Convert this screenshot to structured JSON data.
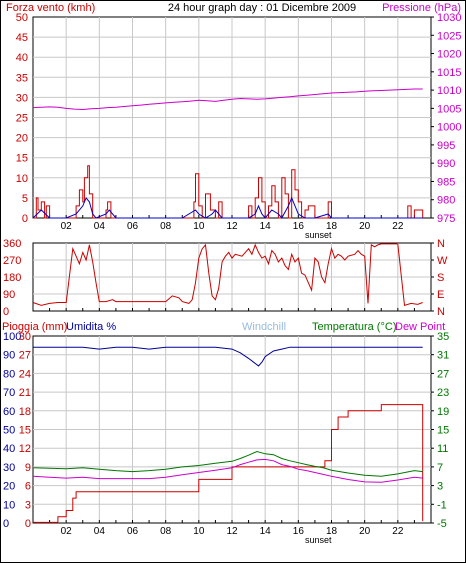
{
  "header": {
    "left_label": "Forza vento (kmh)",
    "title": "24 hour graph day : 01 Dicembre 2009",
    "right_label": "Pressione (hPa)"
  },
  "colors": {
    "wind": "#cc0000",
    "gust": "#0000cc",
    "pressure": "#cc00cc",
    "direction": "#cc0000",
    "rain": "#cc0000",
    "humidity": "#000099",
    "windchill": "#99bbdd",
    "temperature": "#007700",
    "dewpoint": "#cc00cc",
    "grid": "#c8c8c8",
    "axis": "#000000"
  },
  "bottom_header": {
    "rain_label": "Pioggia (mm)",
    "humidity_label": "Umidita %",
    "windchill_label": "Windchill",
    "temperature_label": "Temperatura (°C)",
    "dewpoint_label": "Dew Point"
  },
  "x_ticks": [
    "02",
    "04",
    "06",
    "08",
    "10",
    "12",
    "14",
    "16",
    "18",
    "20",
    "22"
  ],
  "sunset_label": "sunset",
  "chart_data": [
    {
      "type": "line",
      "name": "wind-pressure",
      "x_range": [
        0,
        24
      ],
      "y_left_ticks": [
        "0",
        "5",
        "10",
        "15",
        "20",
        "25",
        "30",
        "35",
        "40",
        "45",
        "50"
      ],
      "y_left_range": [
        0,
        50
      ],
      "y_right_ticks": [
        "975",
        "980",
        "985",
        "990",
        "995",
        "1000",
        "1005",
        "1010",
        "1015",
        "1020",
        "1025",
        "1030"
      ],
      "y_right_range": [
        975,
        1030
      ],
      "series": [
        {
          "key": "wind",
          "x": [
            0,
            0.2,
            0.3,
            0.5,
            0.7,
            0.8,
            1,
            1.5,
            2,
            2.6,
            2.8,
            3,
            3.1,
            3.3,
            3.4,
            3.6,
            3.8,
            4.4,
            4.5,
            4.7,
            5,
            6,
            7,
            9,
            9.7,
            9.8,
            10,
            10.2,
            10.4,
            10.7,
            11,
            11.2,
            11.4,
            11.8,
            12,
            12.5,
            13,
            13.2,
            13.4,
            13.6,
            13.8,
            14,
            14.2,
            14.4,
            14.6,
            14.8,
            15,
            15.2,
            15.4,
            15.6,
            15.8,
            16,
            16.2,
            16.4,
            16.6,
            17,
            17.6,
            17.8,
            18,
            18.4,
            18.8,
            20,
            21,
            22,
            22.6,
            22.8,
            23,
            23.5
          ],
          "y": [
            0,
            5,
            2,
            4,
            0,
            3,
            0,
            0,
            0,
            3,
            7,
            4,
            10,
            13,
            6,
            0,
            0,
            2,
            4,
            0,
            0,
            0,
            0,
            0,
            4,
            11,
            3,
            0,
            6,
            2,
            0,
            4,
            0,
            0,
            0,
            0,
            3,
            0,
            5,
            10,
            4,
            0,
            3,
            8,
            4,
            0,
            10,
            6,
            0,
            12,
            7,
            4,
            0,
            2,
            3,
            0,
            0,
            4,
            0,
            0,
            0,
            0,
            0,
            0,
            3,
            0,
            2,
            0
          ]
        },
        {
          "key": "gust",
          "x": [
            0,
            0.5,
            1,
            2,
            2.6,
            3,
            3.2,
            3.4,
            3.6,
            3.8,
            4.4,
            4.6,
            5,
            9,
            9.8,
            10,
            10.4,
            10.8,
            11,
            11.4,
            12,
            13,
            13.4,
            13.6,
            13.8,
            14,
            14.4,
            14.8,
            15,
            15.4,
            15.6,
            15.8,
            16,
            16.4,
            17,
            17.8,
            18,
            19,
            23.5
          ],
          "y": [
            0,
            2,
            0,
            0,
            1,
            3,
            5,
            4,
            1,
            0,
            1,
            2,
            0,
            0,
            2,
            1,
            0,
            1,
            2,
            0,
            0,
            0,
            1,
            3,
            1,
            0,
            2,
            1,
            0,
            3,
            5,
            3,
            1,
            0,
            0,
            1,
            0,
            0,
            0
          ]
        },
        {
          "key": "pressure",
          "x": [
            0,
            0.5,
            1,
            1.5,
            2,
            2.5,
            3,
            3.5,
            4,
            4.5,
            5,
            5.5,
            6,
            6.5,
            7,
            7.5,
            8,
            8.5,
            9,
            9.5,
            10,
            10.5,
            11,
            11.5,
            12,
            12.5,
            13,
            13.5,
            14,
            14.5,
            15,
            15.5,
            16,
            16.5,
            17,
            17.5,
            18,
            18.5,
            19,
            19.5,
            20,
            20.5,
            21,
            21.5,
            22,
            22.5,
            23,
            23.5
          ],
          "y": [
            1005.2,
            1005.3,
            1005.4,
            1005.3,
            1005.0,
            1004.8,
            1004.7,
            1004.9,
            1005.0,
            1005.2,
            1005.3,
            1005.5,
            1005.7,
            1005.9,
            1006.1,
            1006.3,
            1006.5,
            1006.7,
            1006.8,
            1007.0,
            1007.2,
            1007.1,
            1006.9,
            1007.2,
            1007.5,
            1007.7,
            1007.6,
            1007.5,
            1007.6,
            1007.8,
            1008.0,
            1008.2,
            1008.4,
            1008.6,
            1008.8,
            1009.0,
            1009.2,
            1009.3,
            1009.4,
            1009.5,
            1009.7,
            1009.8,
            1009.9,
            1010.0,
            1010.1,
            1010.2,
            1010.3,
            1010.3
          ]
        }
      ]
    },
    {
      "type": "line",
      "name": "wind-direction",
      "x_range": [
        0,
        24
      ],
      "y_left_ticks": [
        "0",
        "90",
        "180",
        "270",
        "360"
      ],
      "y_left_range": [
        0,
        360
      ],
      "y_right_ticks": [
        "N",
        "E",
        "S",
        "W",
        "N"
      ],
      "series": [
        {
          "key": "direction",
          "x": [
            0,
            0.5,
            1,
            1.5,
            2,
            2.4,
            2.6,
            2.8,
            3,
            3.2,
            3.4,
            3.6,
            3.8,
            4,
            4.4,
            4.8,
            5,
            6,
            7,
            8,
            8.4,
            8.8,
            9,
            9.4,
            9.6,
            9.8,
            10,
            10.2,
            10.4,
            10.6,
            10.8,
            11,
            11.2,
            11.4,
            11.6,
            11.8,
            12,
            12.2,
            12.6,
            13,
            13.2,
            13.4,
            13.6,
            13.8,
            14,
            14.2,
            14.4,
            14.6,
            14.8,
            15,
            15.2,
            15.4,
            15.6,
            15.8,
            16,
            16.2,
            16.4,
            16.8,
            17,
            17.2,
            17.4,
            17.6,
            17.8,
            18,
            18.2,
            18.4,
            18.6,
            18.8,
            19,
            19.4,
            19.6,
            19.8,
            20,
            20.2,
            20.4,
            20.6,
            20.8,
            21,
            21.4,
            21.8,
            22,
            22.4,
            22.8,
            23.2,
            23.5
          ],
          "y": [
            45,
            30,
            40,
            45,
            45,
            330,
            290,
            250,
            310,
            270,
            350,
            260,
            150,
            50,
            50,
            60,
            50,
            50,
            50,
            50,
            80,
            70,
            50,
            40,
            60,
            150,
            280,
            330,
            350,
            200,
            80,
            60,
            120,
            260,
            290,
            310,
            280,
            300,
            290,
            330,
            300,
            350,
            310,
            280,
            290,
            250,
            320,
            300,
            260,
            280,
            240,
            220,
            300,
            260,
            280,
            200,
            190,
            110,
            280,
            260,
            180,
            150,
            250,
            330,
            280,
            300,
            290,
            270,
            290,
            300,
            320,
            300,
            290,
            40,
            350,
            340,
            350,
            355,
            355,
            355,
            355,
            30,
            40,
            35,
            45
          ]
        }
      ]
    },
    {
      "type": "line",
      "name": "rain-humidity-temperature",
      "x_range": [
        0,
        24
      ],
      "y_left_ticks": [
        "0",
        "10",
        "20",
        "30",
        "40",
        "50",
        "60",
        "70",
        "80",
        "90",
        "100"
      ],
      "y_left_range": [
        0,
        100
      ],
      "y_left_inner_ticks": [
        "0",
        "3",
        "6",
        "9",
        "12",
        "15",
        "18",
        "21",
        "24",
        "27",
        "30"
      ],
      "y_right_ticks": [
        "-5",
        "-1",
        "3",
        "7",
        "11",
        "15",
        "19",
        "23",
        "27",
        "31",
        "35"
      ],
      "y_right_range": [
        -5,
        35
      ],
      "series": [
        {
          "key": "rain",
          "x": [
            0,
            1.4,
            1.5,
            2,
            2.4,
            2.6,
            4,
            6,
            8,
            9.9,
            10,
            11,
            11.8,
            12,
            13,
            13.4,
            14.5,
            15,
            17,
            17.6,
            18,
            18.4,
            19,
            20,
            21,
            22,
            23,
            23.5
          ],
          "y": [
            0.1,
            0.1,
            1,
            2,
            4,
            5,
            5,
            5,
            5,
            5,
            7,
            7,
            7,
            9,
            9,
            9,
            9,
            9,
            9,
            10,
            15,
            17,
            18,
            18,
            19,
            19,
            19,
            0.3
          ]
        },
        {
          "key": "humidity",
          "x": [
            0,
            1,
            2,
            3,
            4,
            5,
            6,
            7,
            8,
            9,
            10,
            11,
            12,
            12.5,
            13,
            13.3,
            13.6,
            13.8,
            14,
            14.5,
            15,
            15.5,
            16,
            17,
            18,
            19,
            20,
            21,
            22,
            23,
            23.5
          ],
          "y": [
            94,
            94,
            94,
            94,
            93,
            94,
            94,
            93,
            94,
            94,
            94,
            94,
            93,
            91,
            88,
            86,
            84,
            86,
            89,
            92,
            93,
            94,
            94,
            94,
            94,
            94,
            94,
            94,
            94,
            94,
            94
          ]
        },
        {
          "key": "temperature",
          "x": [
            0,
            1,
            2,
            3,
            4,
            5,
            6,
            7,
            8,
            9,
            10,
            11,
            12,
            12.5,
            13,
            13.5,
            14,
            14.5,
            15,
            15.5,
            16,
            16.5,
            17,
            17.5,
            18,
            19,
            20,
            21,
            22,
            23,
            23.5
          ],
          "y": [
            6.8,
            6.7,
            6.6,
            6.8,
            6.5,
            6.2,
            6.0,
            6.2,
            6.5,
            7.0,
            7.3,
            7.8,
            8.2,
            8.8,
            9.5,
            10.3,
            9.8,
            9.6,
            8.8,
            8.3,
            7.9,
            7.5,
            7.1,
            6.8,
            6.3,
            5.7,
            5.2,
            5.0,
            5.5,
            6.2,
            6.0
          ]
        },
        {
          "key": "dewpoint",
          "x": [
            0,
            1,
            2,
            3,
            4,
            5,
            6,
            7,
            8,
            9,
            10,
            11,
            12,
            12.5,
            13,
            13.5,
            14,
            14.5,
            15,
            15.5,
            16,
            16.5,
            17,
            17.5,
            18,
            19,
            20,
            21,
            22,
            23,
            23.5
          ],
          "y": [
            5.0,
            4.8,
            4.6,
            4.8,
            4.5,
            4.5,
            4.5,
            4.5,
            4.8,
            5.3,
            5.8,
            6.3,
            6.8,
            7.5,
            8.0,
            8.5,
            8.6,
            8.3,
            7.5,
            7.1,
            6.5,
            6.2,
            5.8,
            5.4,
            5.0,
            4.3,
            3.8,
            3.7,
            4.2,
            4.8,
            4.6
          ]
        }
      ]
    }
  ]
}
